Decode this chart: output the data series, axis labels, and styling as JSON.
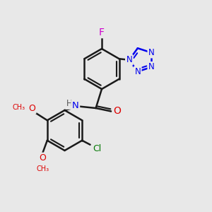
{
  "bg_color": "#e8e8e8",
  "bond_color": "#1a1a1a",
  "bond_width": 1.8,
  "atom_colors": {
    "C": "#1a1a1a",
    "N": "#0000ee",
    "O": "#dd0000",
    "F": "#cc00cc",
    "Cl": "#007700",
    "H": "#555555"
  },
  "font_size": 9,
  "fig_width": 3.0,
  "fig_height": 3.0,
  "dpi": 100,
  "xlim": [
    0,
    10
  ],
  "ylim": [
    0,
    10
  ]
}
